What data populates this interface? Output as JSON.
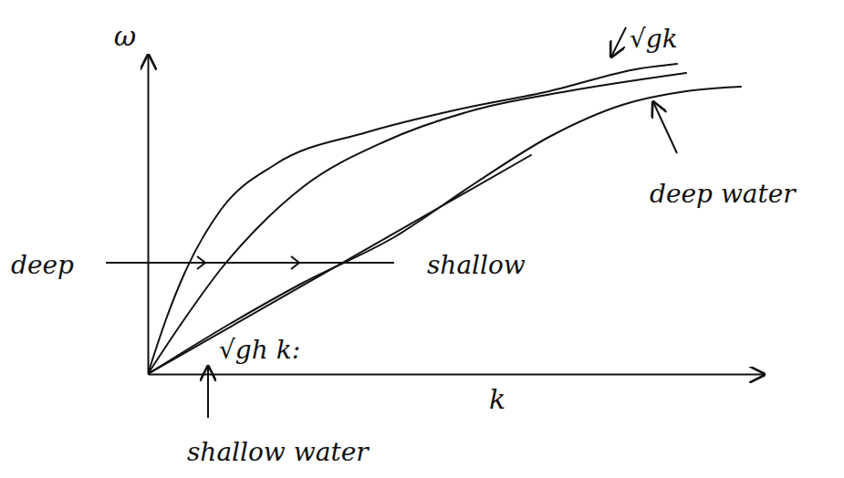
{
  "chart_data": {
    "type": "line",
    "x_label": "k",
    "y_label": "ω",
    "xlim": [
      0,
      13.5
    ],
    "ylim": [
      0,
      7
    ],
    "xticks": [],
    "yticks": [],
    "tick_labels": false,
    "grid": false,
    "color": "#111111",
    "line_style": "solid",
    "series": [
      {
        "x": [
          0,
          0.4,
          0.8,
          1.6,
          2.8,
          4.8,
          6.8,
          8.8,
          10.8,
          11.6
        ],
        "values": [
          0,
          1.2,
          2.2,
          3.6,
          4.6,
          5.3,
          5.8,
          6.2,
          6.7,
          6.8
        ]
      },
      {
        "x": [
          0,
          0.8,
          1.6,
          2.4,
          3.4,
          5.2,
          7.2,
          9.2,
          11.8
        ],
        "values": [
          0,
          1.2,
          2.3,
          3.2,
          4.1,
          5.1,
          5.8,
          6.2,
          6.6
        ]
      },
      {
        "x": [
          0,
          1.8,
          3.4,
          5.4,
          7.2,
          8.8,
          10.4,
          11.8,
          13
        ],
        "values": [
          0,
          1.1,
          2,
          3,
          4.2,
          5.2,
          5.9,
          6.2,
          6.3
        ]
      },
      {
        "x": [
          0,
          8.4
        ],
        "values": [
          0,
          4.8
        ]
      }
    ],
    "annotations": [
      "√gk",
      "deep water",
      "shallow water",
      "√gh k:",
      "deep",
      "shallow"
    ]
  }
}
